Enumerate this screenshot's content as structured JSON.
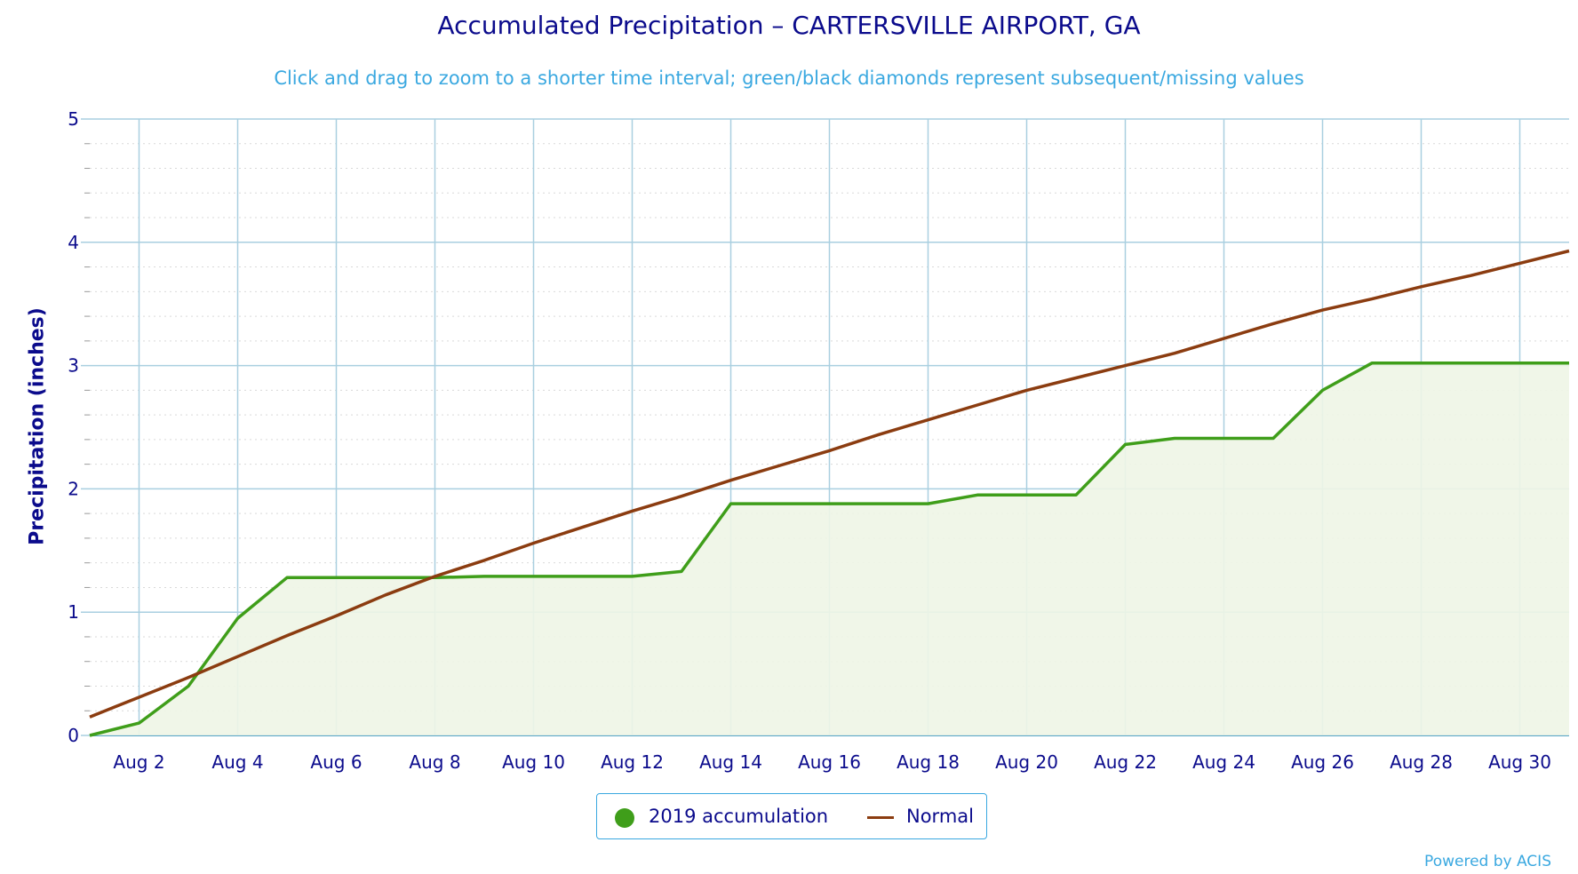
{
  "title": "Accumulated Precipitation – CARTERSVILLE AIRPORT, GA",
  "subtitle": "Click and drag to zoom to a shorter time interval; green/black diamonds represent subsequent/missing values",
  "credit": "Powered by ACIS",
  "colors": {
    "accumulation": "#3f9e1a",
    "accumulation_fill": "#eef5e6",
    "normal": "#8b3c10",
    "grid": "#a9cfe0",
    "axis_text": "#0b0b8c",
    "accent": "#3aa8e0"
  },
  "chart_data": {
    "type": "line",
    "title": "Accumulated Precipitation – CARTERSVILLE AIRPORT, GA",
    "xlabel": "",
    "ylabel": "Precipitation (inches)",
    "ylim": [
      0,
      5
    ],
    "yticks": [
      "0",
      "1",
      "2",
      "3",
      "4",
      "5"
    ],
    "xlim": [
      "Aug 1",
      "Aug 31"
    ],
    "xticks": [
      "Aug 2",
      "Aug 4",
      "Aug 6",
      "Aug 8",
      "Aug 10",
      "Aug 12",
      "Aug 14",
      "Aug 16",
      "Aug 18",
      "Aug 20",
      "Aug 22",
      "Aug 24",
      "Aug 26",
      "Aug 28",
      "Aug 30"
    ],
    "grid": true,
    "legend_position": "bottom-center",
    "x": [
      1,
      2,
      3,
      4,
      5,
      6,
      7,
      8,
      9,
      10,
      11,
      12,
      13,
      14,
      15,
      16,
      17,
      18,
      19,
      20,
      21,
      22,
      23,
      24,
      25,
      26,
      27,
      28,
      29,
      30,
      31
    ],
    "series": [
      {
        "name": "2019 accumulation",
        "color": "#3f9e1a",
        "style": "area",
        "values": [
          0.0,
          0.1,
          0.4,
          0.95,
          1.28,
          1.28,
          1.28,
          1.28,
          1.29,
          1.29,
          1.29,
          1.29,
          1.33,
          1.88,
          1.88,
          1.88,
          1.88,
          1.88,
          1.95,
          1.95,
          1.95,
          2.36,
          2.41,
          2.41,
          2.41,
          2.8,
          3.02,
          3.02,
          3.02,
          3.02,
          3.02
        ]
      },
      {
        "name": "Normal",
        "color": "#8b3c10",
        "style": "line",
        "values": [
          0.15,
          0.31,
          0.47,
          0.64,
          0.81,
          0.97,
          1.14,
          1.29,
          1.42,
          1.56,
          1.69,
          1.82,
          1.94,
          2.07,
          2.19,
          2.31,
          2.44,
          2.56,
          2.68,
          2.8,
          2.9,
          3.0,
          3.1,
          3.22,
          3.34,
          3.45,
          3.54,
          3.64,
          3.73,
          3.83,
          3.93
        ]
      }
    ]
  }
}
